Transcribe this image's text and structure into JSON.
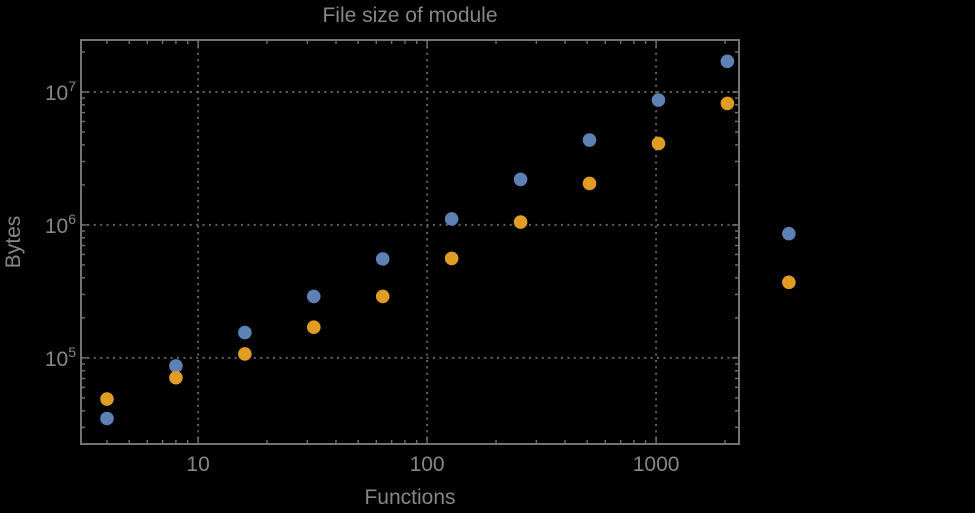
{
  "page": {
    "background_color": "#000000"
  },
  "chart_data": {
    "type": "scatter",
    "title": "File size of module",
    "xlabel": "Functions",
    "ylabel": "Bytes",
    "x_scale": "log",
    "y_scale": "log",
    "xlim": [
      3.08,
      2302
    ],
    "ylim": [
      22500,
      24600000
    ],
    "grid": {
      "style": "dotted",
      "x_values": [
        10,
        100,
        1000
      ],
      "y_values": [
        100000,
        1000000,
        10000000
      ]
    },
    "x_ticks": [
      {
        "value": 10,
        "label": "10"
      },
      {
        "value": 100,
        "label": "100"
      },
      {
        "value": 1000,
        "label": "1000"
      }
    ],
    "y_ticks": [
      {
        "value": 100000,
        "base": "10",
        "exponent": "5"
      },
      {
        "value": 1000000,
        "base": "10",
        "exponent": "6"
      },
      {
        "value": 10000000,
        "base": "10",
        "exponent": "7"
      }
    ],
    "series": [
      {
        "name": "series-1-blue",
        "color": "#5e81b5",
        "points": [
          [
            4,
            35000
          ],
          [
            8,
            87000
          ],
          [
            16,
            155000
          ],
          [
            32,
            290000
          ],
          [
            64,
            555000
          ],
          [
            128,
            1110000
          ],
          [
            256,
            2200000
          ],
          [
            512,
            4350000
          ],
          [
            1024,
            8700000
          ],
          [
            2048,
            17000000
          ],
          [
            3800,
            860000
          ]
        ]
      },
      {
        "name": "series-2-orange",
        "color": "#e19c24",
        "points": [
          [
            4,
            49000
          ],
          [
            8,
            71000
          ],
          [
            16,
            107000
          ],
          [
            32,
            170000
          ],
          [
            64,
            290000
          ],
          [
            128,
            560000
          ],
          [
            256,
            1050000
          ],
          [
            512,
            2050000
          ],
          [
            1024,
            4100000
          ],
          [
            2048,
            8200000
          ],
          [
            3800,
            370000
          ]
        ]
      }
    ]
  },
  "style": {
    "frame_color": "#737373",
    "grid_color": "#646464",
    "text_color": "#878787",
    "marker_radius": 6.8
  }
}
